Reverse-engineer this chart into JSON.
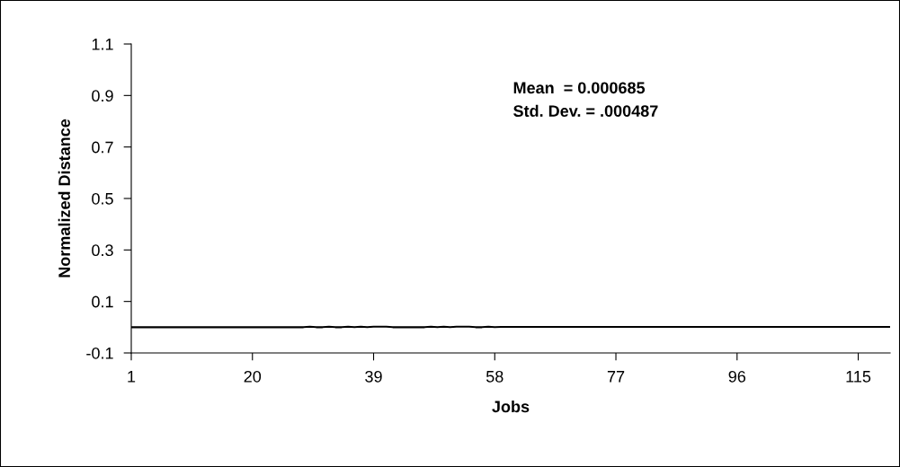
{
  "chart_data": {
    "type": "line",
    "xlabel": "Jobs",
    "ylabel": "Normalized Distance",
    "annotations": [
      "Mean  = 0.000685",
      "Std. Dev. = .000487"
    ],
    "x": [
      1,
      2,
      3,
      4,
      5,
      6,
      7,
      8,
      9,
      10,
      11,
      12,
      13,
      14,
      15,
      16,
      17,
      18,
      19,
      20,
      21,
      22,
      23,
      24,
      25,
      26,
      27,
      28,
      29,
      30,
      31,
      32,
      33,
      34,
      35,
      36,
      37,
      38,
      39,
      40,
      41,
      42,
      43,
      44,
      45,
      46,
      47,
      48,
      49,
      50,
      51,
      52,
      53,
      54,
      55,
      56,
      57,
      58,
      59,
      60,
      61,
      62,
      63,
      64,
      65,
      66,
      67,
      68,
      69,
      70,
      71,
      72,
      73,
      74,
      75,
      76,
      77,
      78,
      79,
      80,
      81,
      82,
      83,
      84,
      85,
      86,
      87,
      88,
      89,
      90,
      91,
      92,
      93,
      94,
      95,
      96,
      97,
      98,
      99,
      100,
      101,
      102,
      103,
      104,
      105,
      106,
      107,
      108,
      109,
      110,
      111,
      112,
      113,
      114,
      115,
      116,
      117,
      118,
      119,
      120
    ],
    "series": [
      {
        "color": "#000000",
        "values": [
          0,
          0,
          0,
          0,
          0,
          0,
          0,
          0,
          0,
          0,
          0,
          0,
          0,
          0,
          0,
          0,
          0,
          0,
          0,
          0,
          0,
          0,
          0,
          0,
          0,
          0,
          0,
          0,
          0.002,
          0,
          0,
          0.002,
          0,
          0,
          0.002,
          0,
          0.002,
          0,
          0.002,
          0.002,
          0.002,
          0,
          0,
          0,
          0,
          0,
          0,
          0.002,
          0,
          0.002,
          0,
          0.002,
          0.002,
          0.002,
          0,
          0,
          0.002,
          0,
          0.001,
          0.001,
          0.001,
          0.001,
          0.001,
          0.001,
          0.001,
          0.001,
          0.001,
          0.001,
          0.001,
          0.001,
          0.001,
          0.001,
          0.001,
          0.001,
          0.001,
          0.001,
          0.001,
          0.001,
          0.001,
          0.001,
          0.001,
          0.001,
          0.001,
          0.001,
          0.001,
          0.001,
          0.001,
          0.001,
          0.001,
          0.001,
          0.001,
          0.001,
          0.001,
          0.001,
          0.001,
          0.001,
          0.001,
          0.001,
          0.001,
          0.001,
          0.001,
          0.001,
          0.001,
          0.001,
          0.001,
          0.001,
          0.001,
          0.001,
          0.001,
          0.001,
          0.001,
          0.001,
          0.001,
          0.001,
          0.001,
          0.001,
          0.001,
          0.001,
          0.001,
          0.001
        ]
      }
    ],
    "xlim": [
      1,
      120
    ],
    "xticks": [
      1,
      20,
      39,
      58,
      77,
      96,
      115
    ],
    "ylim": [
      -0.1,
      1.1
    ],
    "yticks": [
      -0.1,
      0.1,
      0.3,
      0.5,
      0.7,
      0.9,
      1.1
    ],
    "grid": false,
    "legend": false,
    "marker": "none",
    "line_style": "solid"
  }
}
